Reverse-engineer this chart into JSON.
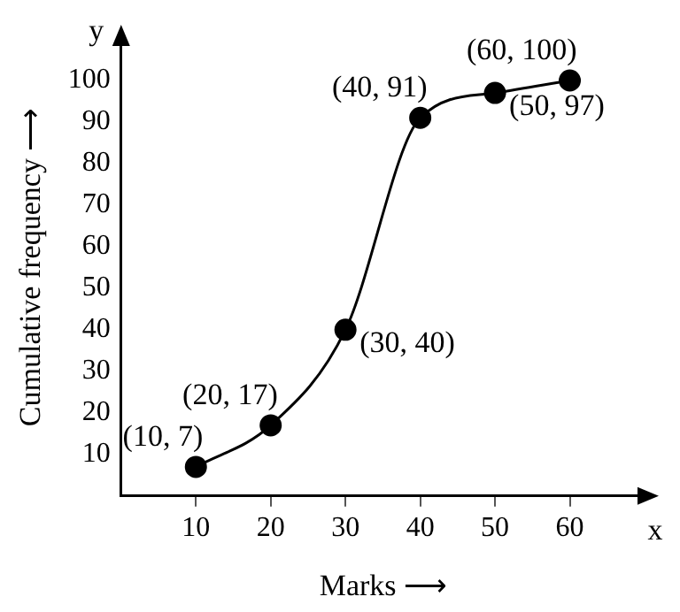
{
  "chart_data": {
    "type": "line",
    "xlabel": "Marks ⟶",
    "ylabel": "Cumulative frequency ⟶",
    "x": [
      10,
      20,
      30,
      40,
      50,
      60
    ],
    "series": [
      {
        "color": "#000000",
        "values": [
          7,
          17,
          40,
          91,
          97,
          100
        ],
        "value_labels": [
          "(10, 7)",
          "(20, 17)",
          "(30, 40)",
          "(40, 91)",
          "(50, 97)",
          "(60, 100)"
        ]
      }
    ],
    "xlim": [
      0,
      70
    ],
    "xticks": [
      10,
      20,
      30,
      40,
      50,
      60
    ],
    "ylim": [
      0,
      110
    ],
    "yticks": [
      10,
      20,
      30,
      40,
      50,
      60,
      70,
      80,
      90,
      100
    ],
    "annotations": [
      {
        "text": "x",
        "x": 70,
        "y": 0
      },
      {
        "text": "y",
        "x": 0,
        "y": 110
      }
    ],
    "grid": false,
    "legend": false,
    "marker": "circle",
    "line_style": "solid"
  }
}
